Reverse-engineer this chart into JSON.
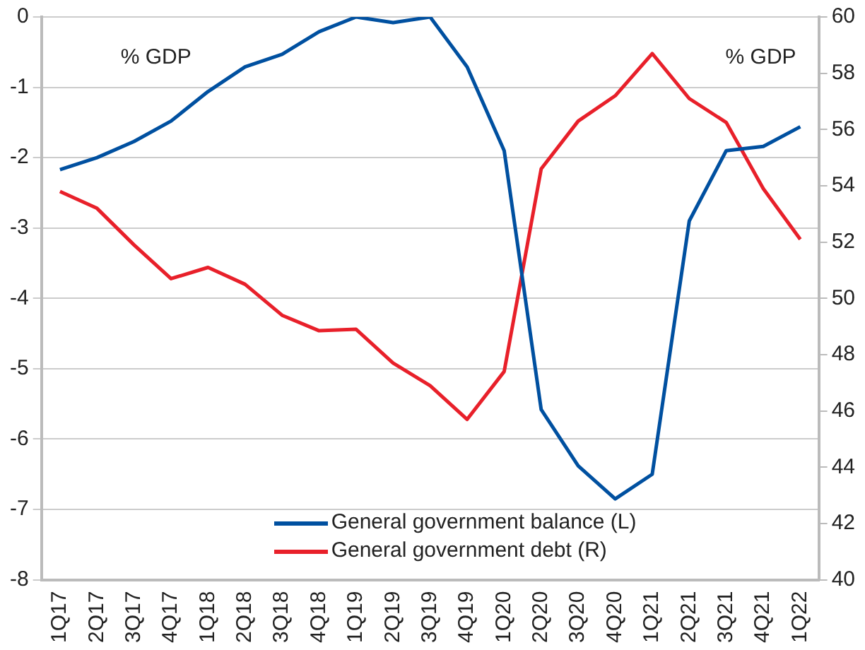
{
  "chart_data": {
    "type": "line",
    "categories": [
      "1Q17",
      "2Q17",
      "3Q17",
      "4Q17",
      "1Q18",
      "2Q18",
      "3Q18",
      "4Q18",
      "1Q19",
      "2Q19",
      "3Q19",
      "4Q19",
      "1Q20",
      "2Q20",
      "3Q20",
      "4Q20",
      "1Q21",
      "2Q21",
      "3Q21",
      "4Q21",
      "1Q22"
    ],
    "series": [
      {
        "name": "General government balance (L)",
        "color": "#0050a0",
        "values": [
          -2.17,
          -2.0,
          -1.77,
          -1.48,
          -1.06,
          -0.71,
          -0.53,
          -0.21,
          0,
          -0.08,
          0,
          -0.71,
          -1.9,
          -5.58,
          -6.38,
          -6.85,
          -6.5,
          -2.9,
          -1.9,
          -1.84,
          -1.56
        ]
      },
      {
        "name": "General government debt (R)",
        "color": "#e8202a",
        "axis": "y2",
        "values": [
          53.8,
          53.2,
          51.9,
          50.7,
          51.1,
          50.5,
          49.4,
          48.85,
          48.9,
          47.7,
          46.9,
          45.7,
          47.4,
          54.6,
          56.3,
          57.2,
          58.7,
          57.1,
          56.25,
          53.9,
          52.1
        ]
      }
    ],
    "ylim": [
      -8,
      0
    ],
    "yticks": [
      -8,
      -7,
      -6,
      -5,
      -4,
      -3,
      -2,
      -1,
      0
    ],
    "y2lim": [
      40,
      60
    ],
    "y2ticks": [
      40,
      42,
      44,
      46,
      48,
      50,
      52,
      54,
      56,
      58,
      60
    ],
    "annotations": [
      "% GDP",
      "% GDP"
    ],
    "grid": "y",
    "legend": "bottom",
    "marker": "none",
    "line_style": "solid"
  }
}
